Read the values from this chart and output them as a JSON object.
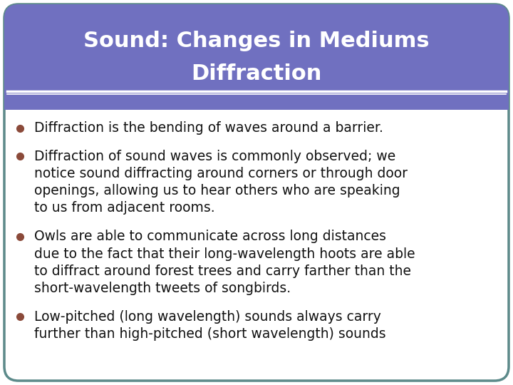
{
  "title_line1": "Sound: Changes in Mediums",
  "title_line2": "Diffraction",
  "title_bg_color": "#7070C0",
  "title_text_color": "#FFFFFF",
  "border_color": "#5C8A8A",
  "bg_color": "#FFFFFF",
  "bullet_color": "#8B4A3A",
  "bullet_points": [
    "Diffraction is the bending of waves around a barrier.",
    "Diffraction of sound waves is commonly observed; we\nnotice sound diffracting around corners or through door\nopenings, allowing us to hear others who are speaking\nto us from adjacent rooms.",
    "Owls are able to communicate across long distances\ndue to the fact that their long-wavelength hoots are able\nto diffract around forest trees and carry farther than the\nshort-wavelength tweets of songbirds.",
    "Low-pitched (long wavelength) sounds always carry\nfurther than high-pitched (short wavelength) sounds"
  ],
  "font_size": 13.5,
  "title_font_size": 22,
  "fig_width": 7.2,
  "fig_height": 5.4,
  "dpi": 100
}
